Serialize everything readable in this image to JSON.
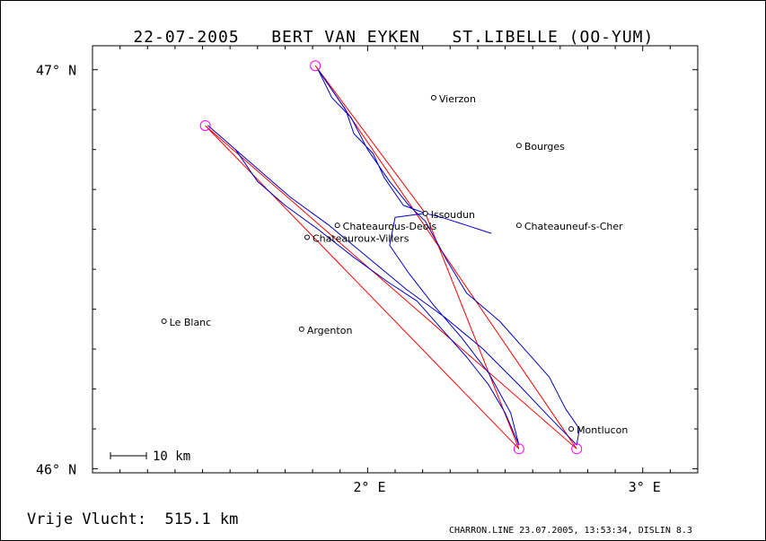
{
  "header": {
    "date": "22-07-2005",
    "pilot": "BERT VAN EYKEN",
    "glider": "ST.LIBELLE (OO-YUM)"
  },
  "axes": {
    "lat_labels": [
      {
        "lat": 47.0,
        "text": "47° N"
      },
      {
        "lat": 46.0,
        "text": "46° N"
      }
    ],
    "lon_labels": [
      {
        "lon": 2.0,
        "text": "2° E"
      },
      {
        "lon": 3.0,
        "text": "3° E"
      }
    ],
    "lon_range": [
      1.0,
      3.2
    ],
    "lat_range": [
      45.99,
      47.06
    ]
  },
  "towns": [
    {
      "name": "Vierzon",
      "lon": 2.24,
      "lat": 46.93
    },
    {
      "name": "Bourges",
      "lon": 2.55,
      "lat": 46.81
    },
    {
      "name": "Issoudun",
      "lon": 2.21,
      "lat": 46.64
    },
    {
      "name": "Chateaurous-Deols",
      "lon": 1.89,
      "lat": 46.61
    },
    {
      "name": "Chateauroux-Villers",
      "lon": 1.78,
      "lat": 46.58
    },
    {
      "name": "Chateauneuf-s-Cher",
      "lon": 2.55,
      "lat": 46.61
    },
    {
      "name": "Le Blanc",
      "lon": 1.26,
      "lat": 46.37
    },
    {
      "name": "Argenton",
      "lon": 1.76,
      "lat": 46.35
    },
    {
      "name": "Montlucon",
      "lon": 2.74,
      "lat": 46.1
    }
  ],
  "turnpoints": [
    {
      "lon": 1.81,
      "lat": 47.01
    },
    {
      "lon": 1.41,
      "lat": 46.86
    },
    {
      "lon": 2.55,
      "lat": 46.05
    },
    {
      "lon": 2.76,
      "lat": 46.05
    }
  ],
  "task_route": [
    {
      "lon": 2.21,
      "lat": 46.64
    },
    {
      "lon": 1.81,
      "lat": 47.01
    },
    {
      "lon": 2.76,
      "lat": 46.05
    },
    {
      "lon": 1.41,
      "lat": 46.86
    },
    {
      "lon": 2.55,
      "lat": 46.05
    },
    {
      "lon": 2.21,
      "lat": 46.64
    }
  ],
  "track": [
    {
      "lon": 2.45,
      "lat": 46.59
    },
    {
      "lon": 2.36,
      "lat": 46.61
    },
    {
      "lon": 2.27,
      "lat": 46.63
    },
    {
      "lon": 2.21,
      "lat": 46.64
    },
    {
      "lon": 2.13,
      "lat": 46.66
    },
    {
      "lon": 2.06,
      "lat": 46.73
    },
    {
      "lon": 2.02,
      "lat": 46.79
    },
    {
      "lon": 1.95,
      "lat": 46.84
    },
    {
      "lon": 1.92,
      "lat": 46.9
    },
    {
      "lon": 1.87,
      "lat": 46.95
    },
    {
      "lon": 1.82,
      "lat": 47.0
    },
    {
      "lon": 1.87,
      "lat": 46.93
    },
    {
      "lon": 1.94,
      "lat": 46.88
    },
    {
      "lon": 2.0,
      "lat": 46.8
    },
    {
      "lon": 2.08,
      "lat": 46.72
    },
    {
      "lon": 2.15,
      "lat": 46.66
    },
    {
      "lon": 2.21,
      "lat": 46.62
    },
    {
      "lon": 2.29,
      "lat": 46.52
    },
    {
      "lon": 2.36,
      "lat": 46.44
    },
    {
      "lon": 2.48,
      "lat": 46.37
    },
    {
      "lon": 2.57,
      "lat": 46.3
    },
    {
      "lon": 2.66,
      "lat": 46.23
    },
    {
      "lon": 2.72,
      "lat": 46.15
    },
    {
      "lon": 2.77,
      "lat": 46.1
    },
    {
      "lon": 2.76,
      "lat": 46.06
    },
    {
      "lon": 2.66,
      "lat": 46.13
    },
    {
      "lon": 2.55,
      "lat": 46.21
    },
    {
      "lon": 2.42,
      "lat": 46.3
    },
    {
      "lon": 2.28,
      "lat": 46.38
    },
    {
      "lon": 2.14,
      "lat": 46.45
    },
    {
      "lon": 2.0,
      "lat": 46.53
    },
    {
      "lon": 1.86,
      "lat": 46.61
    },
    {
      "lon": 1.72,
      "lat": 46.68
    },
    {
      "lon": 1.62,
      "lat": 46.74
    },
    {
      "lon": 1.52,
      "lat": 46.8
    },
    {
      "lon": 1.42,
      "lat": 46.86
    },
    {
      "lon": 1.52,
      "lat": 46.8
    },
    {
      "lon": 1.6,
      "lat": 46.72
    },
    {
      "lon": 1.7,
      "lat": 46.66
    },
    {
      "lon": 1.82,
      "lat": 46.6
    },
    {
      "lon": 1.95,
      "lat": 46.53
    },
    {
      "lon": 2.07,
      "lat": 46.47
    },
    {
      "lon": 2.18,
      "lat": 46.42
    },
    {
      "lon": 2.27,
      "lat": 46.35
    },
    {
      "lon": 2.36,
      "lat": 46.28
    },
    {
      "lon": 2.44,
      "lat": 46.21
    },
    {
      "lon": 2.5,
      "lat": 46.14
    },
    {
      "lon": 2.55,
      "lat": 46.06
    },
    {
      "lon": 2.52,
      "lat": 46.14
    },
    {
      "lon": 2.44,
      "lat": 46.24
    },
    {
      "lon": 2.34,
      "lat": 46.33
    },
    {
      "lon": 2.24,
      "lat": 46.41
    },
    {
      "lon": 2.15,
      "lat": 46.49
    },
    {
      "lon": 2.08,
      "lat": 46.56
    },
    {
      "lon": 2.1,
      "lat": 46.63
    },
    {
      "lon": 2.21,
      "lat": 46.64
    }
  ],
  "scale_bar": {
    "text": "10 km"
  },
  "footer": {
    "distance_text": "Vrije Vlucht:  515.1 km",
    "source_text": "CHARRON.LINE 23.07.2005, 13:53:34, DISLIN 8.3"
  },
  "colors": {
    "track": "#0000cc",
    "task_route": "#ff0000",
    "turnpoint": "#ff00ff",
    "frame": "#000000"
  }
}
